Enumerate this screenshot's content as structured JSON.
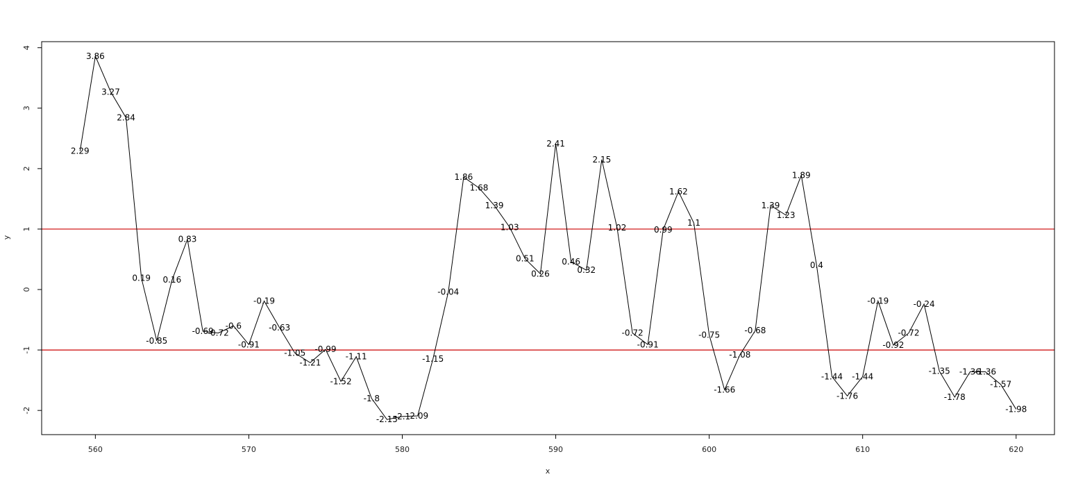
{
  "chart_data": {
    "type": "line",
    "title": "",
    "xlabel": "x",
    "ylabel": "y",
    "xlim": [
      556.5,
      622.5
    ],
    "ylim": [
      -2.4,
      4.1
    ],
    "x_ticks": [
      560,
      570,
      580,
      590,
      600,
      610,
      620
    ],
    "y_ticks": [
      -2,
      -1,
      0,
      1,
      2,
      3,
      4
    ],
    "grid": false,
    "reference_lines": [
      {
        "y": 1,
        "color": "#cc0000"
      },
      {
        "y": -1,
        "color": "#cc0000"
      }
    ],
    "line_color": "#000000",
    "x": [
      559,
      560,
      561,
      562,
      563,
      564,
      565,
      566,
      567,
      568,
      569,
      570,
      571,
      572,
      573,
      574,
      575,
      576,
      577,
      578,
      579,
      580,
      581,
      582,
      583,
      584,
      585,
      586,
      587,
      588,
      589,
      590,
      591,
      592,
      593,
      594,
      595,
      596,
      597,
      598,
      599,
      600,
      601,
      602,
      603,
      604,
      605,
      606,
      607,
      608,
      609,
      610,
      611,
      612,
      613,
      614,
      615,
      616,
      617,
      618,
      619,
      620
    ],
    "y": [
      2.29,
      3.86,
      3.27,
      2.84,
      0.19,
      -0.85,
      0.16,
      0.83,
      -0.69,
      -0.72,
      -0.6,
      -0.91,
      -0.19,
      -0.63,
      -1.05,
      -1.21,
      -0.99,
      -1.52,
      -1.11,
      -1.8,
      -2.15,
      -2.1,
      -2.09,
      -1.15,
      -0.04,
      1.86,
      1.68,
      1.39,
      1.03,
      0.51,
      0.26,
      2.41,
      0.46,
      0.32,
      2.15,
      1.02,
      -0.72,
      -0.91,
      0.99,
      1.62,
      1.1,
      -0.75,
      -1.66,
      -1.08,
      -0.68,
      1.39,
      1.23,
      1.89,
      0.4,
      -1.44,
      -1.76,
      -1.44,
      -0.19,
      -0.92,
      -0.72,
      -0.24,
      -1.35,
      -1.78,
      -1.36,
      -1.36,
      -1.57,
      -1.98
    ],
    "labels": [
      "2.29",
      "3.86",
      "3.27",
      "2.84",
      "0.19",
      "-0.85",
      "0.16",
      "0.83",
      "-0.69",
      "-0.72",
      "-0.6",
      "-0.91",
      "-0.19",
      "-0.63",
      "-1.05",
      "-1.21",
      "-0.99",
      "-1.52",
      "-1.11",
      "-1.8",
      "-2.15",
      "-2.1",
      "-2.09",
      "-1.15",
      "-0.04",
      "1.86",
      "1.68",
      "1.39",
      "1.03",
      "0.51",
      "0.26",
      "2.41",
      "0.46",
      "0.32",
      "2.15",
      "1.02",
      "-0.72",
      "-0.91",
      "0.99",
      "1.62",
      "1.1",
      "-0.75",
      "-1.66",
      "-1.08",
      "-0.68",
      "1.39",
      "1.23",
      "1.89",
      "0.4",
      "-1.44",
      "-1.76",
      "-1.44",
      "-0.19",
      "-0.92",
      "-0.72",
      "-0.24",
      "-1.35",
      "-1.78",
      "-1.36",
      "-1.36",
      "-1.57",
      "-1.98"
    ]
  }
}
